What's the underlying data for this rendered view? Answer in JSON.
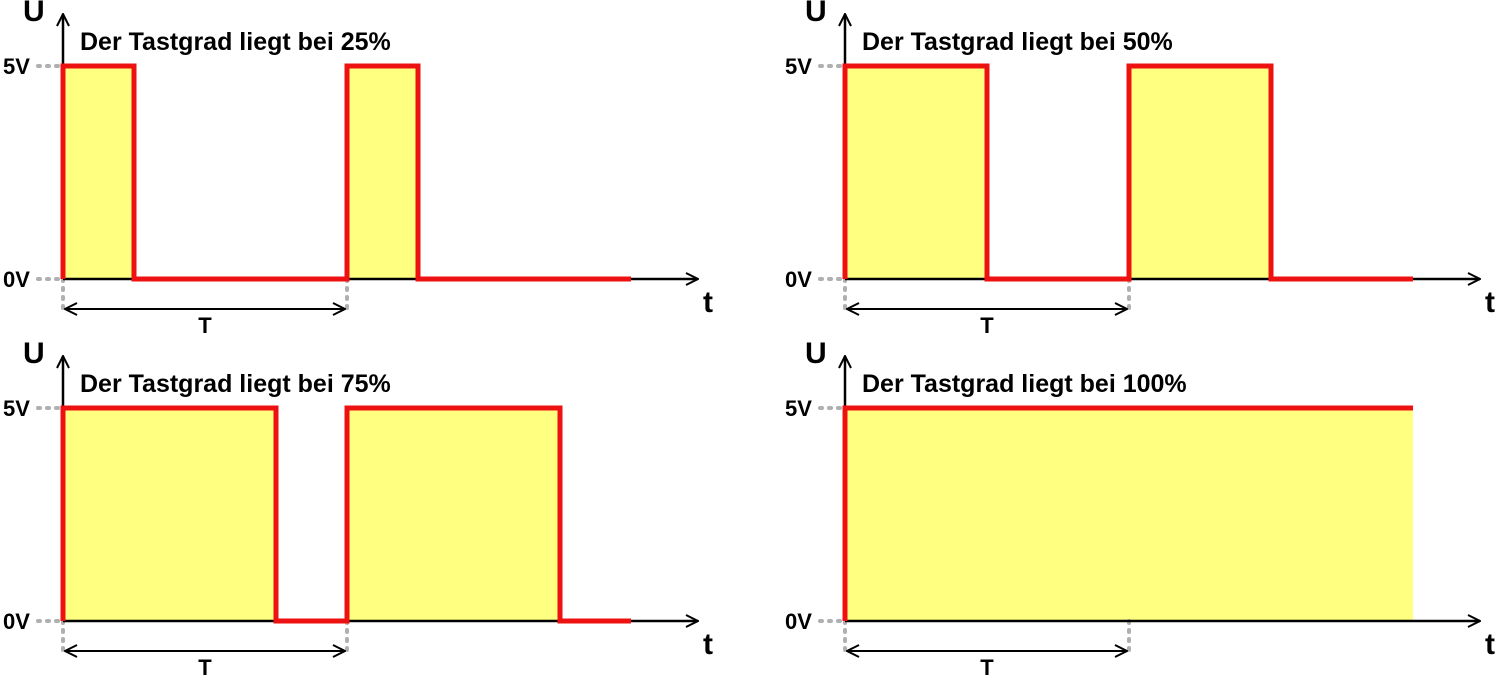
{
  "chart_data": [
    {
      "type": "line",
      "title": "Der Tastgrad liegt bei 25%",
      "duty_cycle_percent": 25,
      "xlabel": "t",
      "ylabel": "U",
      "yticks": [
        "0V",
        "5V"
      ],
      "period_label": "T",
      "periods_shown": 2,
      "low": 0,
      "high": 5
    },
    {
      "type": "line",
      "title": "Der Tastgrad liegt bei 50%",
      "duty_cycle_percent": 50,
      "xlabel": "t",
      "ylabel": "U",
      "yticks": [
        "0V",
        "5V"
      ],
      "period_label": "T",
      "periods_shown": 2,
      "low": 0,
      "high": 5
    },
    {
      "type": "line",
      "title": "Der Tastgrad liegt bei 75%",
      "duty_cycle_percent": 75,
      "xlabel": "t",
      "ylabel": "U",
      "yticks": [
        "0V",
        "5V"
      ],
      "period_label": "T",
      "periods_shown": 2,
      "low": 0,
      "high": 5
    },
    {
      "type": "line",
      "title": "Der Tastgrad liegt bei 100%",
      "duty_cycle_percent": 100,
      "xlabel": "t",
      "ylabel": "U",
      "yticks": [
        "0V",
        "5V"
      ],
      "period_label": "T",
      "periods_shown": 2,
      "low": 0,
      "high": 5
    }
  ],
  "colors": {
    "signal": "#ee1111",
    "fill": "#ffff80",
    "axis": "#000000",
    "guide": "#b0b0b0"
  }
}
